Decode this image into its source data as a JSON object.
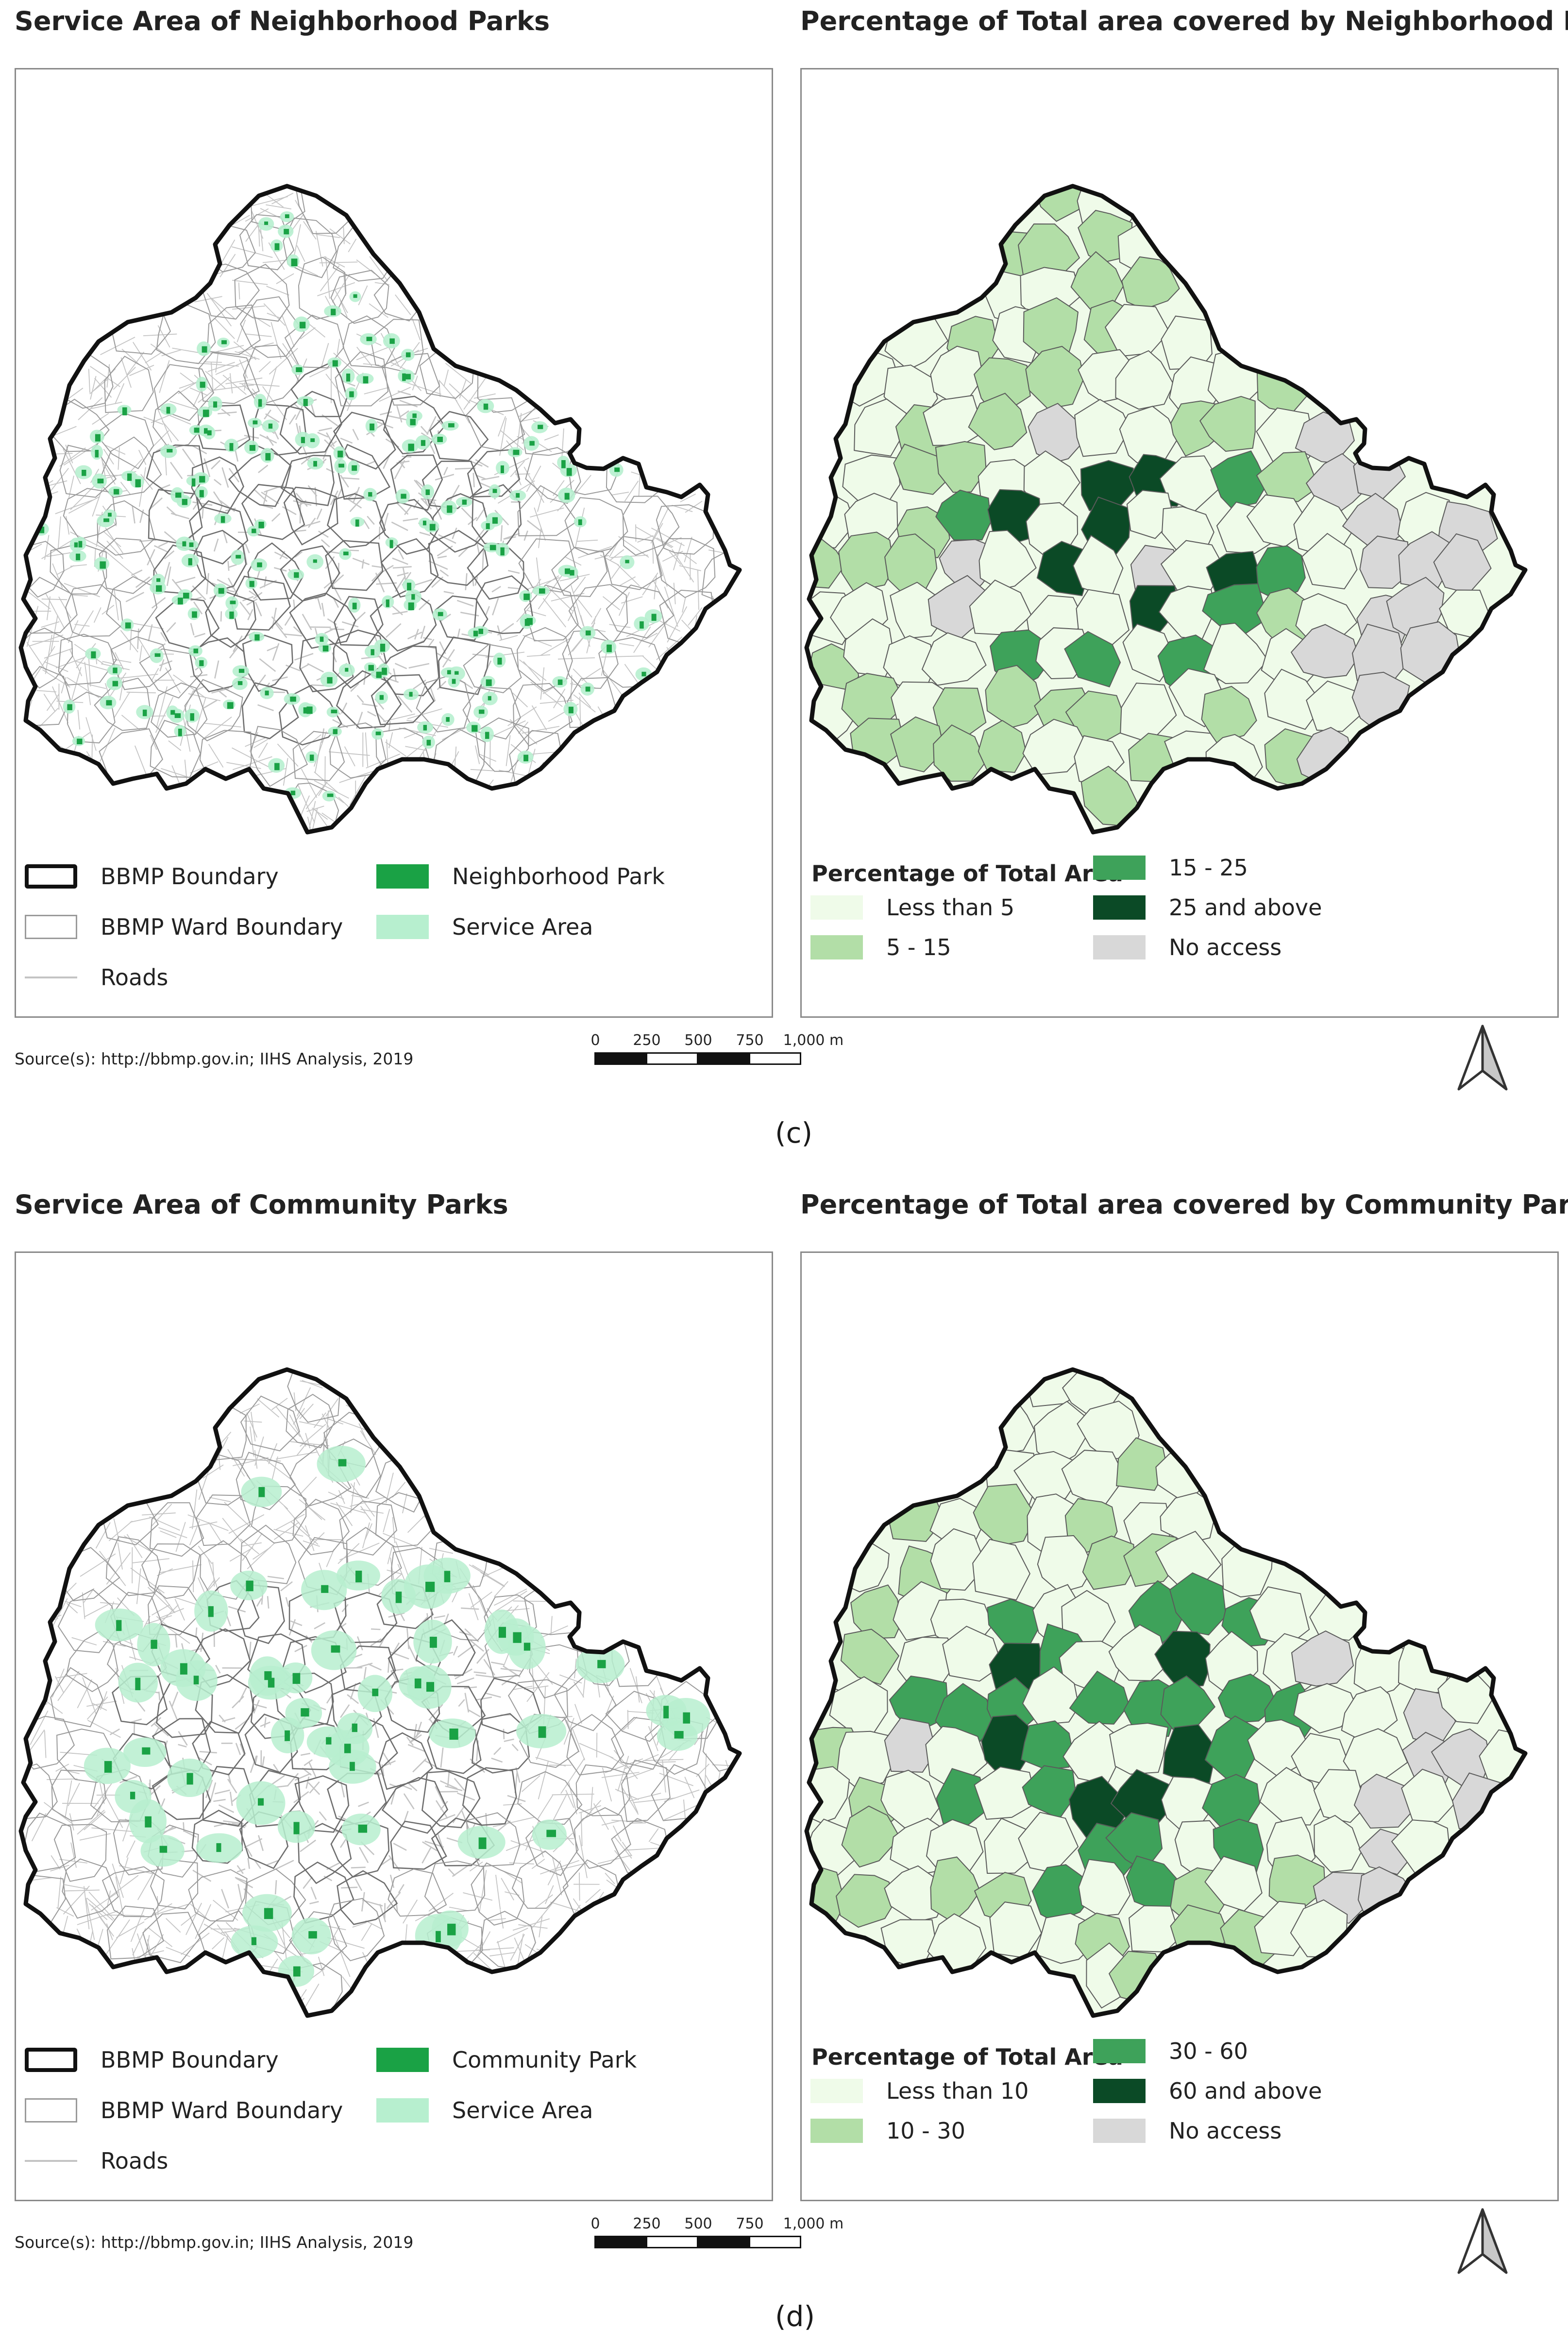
{
  "panels": [
    {
      "id": "c-left",
      "title": "Service Area of Neighborhood Parks",
      "legend_type": "service",
      "legend": [
        {
          "label": "BBMP Boundary",
          "symbol": "boundary"
        },
        {
          "label": "BBMP Ward Boundary",
          "symbol": "ward"
        },
        {
          "label": "Roads",
          "symbol": "road"
        },
        {
          "label": "Neighborhood Park",
          "symbol": "park",
          "color": "#1aa245"
        },
        {
          "label": "Service Area",
          "symbol": "service",
          "color": "#b7efcf"
        }
      ]
    },
    {
      "id": "c-right",
      "title": "Percentage of Total area covered by Neighborhood Parks",
      "legend_type": "choropleth",
      "legend_title": "Percentage of Total Area",
      "legend": [
        {
          "label": "Less than 5",
          "color": "#effbe9"
        },
        {
          "label": "5 - 15",
          "color": "#b2dea7"
        },
        {
          "label": "15 - 25",
          "color": "#3ea25a"
        },
        {
          "label": "25 and above",
          "color": "#0b4a26"
        },
        {
          "label": "No access",
          "color": "#d8d8d8"
        }
      ]
    },
    {
      "id": "d-left",
      "title": "Service Area of Community Parks",
      "legend_type": "service",
      "legend": [
        {
          "label": "BBMP Boundary",
          "symbol": "boundary"
        },
        {
          "label": "BBMP Ward Boundary",
          "symbol": "ward"
        },
        {
          "label": "Roads",
          "symbol": "road"
        },
        {
          "label": "Community Park",
          "symbol": "park",
          "color": "#1aa245"
        },
        {
          "label": "Service Area",
          "symbol": "service",
          "color": "#b7efcf"
        }
      ]
    },
    {
      "id": "d-right",
      "title": "Percentage of Total area covered by Community Parks",
      "legend_type": "choropleth",
      "legend_title": "Percentage of Total Area",
      "legend": [
        {
          "label": "Less than 10",
          "color": "#effbe9"
        },
        {
          "label": "10 - 30",
          "color": "#b2dea7"
        },
        {
          "label": "30 - 60",
          "color": "#3ea25a"
        },
        {
          "label": "60 and above",
          "color": "#0b4a26"
        },
        {
          "label": "No access",
          "color": "#d8d8d8"
        }
      ]
    }
  ],
  "footers": [
    {
      "source": "Source(s): http://bbmp.gov.in; IIHS Analysis, 2019",
      "scale_labels": [
        "0",
        "250",
        "500",
        "750",
        "1,000 m"
      ],
      "caption": "(c)"
    },
    {
      "source": "Source(s): http://bbmp.gov.in; IIHS Analysis, 2019",
      "scale_labels": [
        "0",
        "250",
        "500",
        "750",
        "1,000 m"
      ],
      "caption": "(d)"
    }
  ],
  "colors": {
    "boundary": "#111111",
    "ward_line": "#9a9a9a",
    "road": "#c4c4c4",
    "park": "#1aa245",
    "service": "#b7efcf",
    "frame": "#8a8a8a"
  },
  "icons": {
    "north_arrow": "north-arrow-icon"
  }
}
